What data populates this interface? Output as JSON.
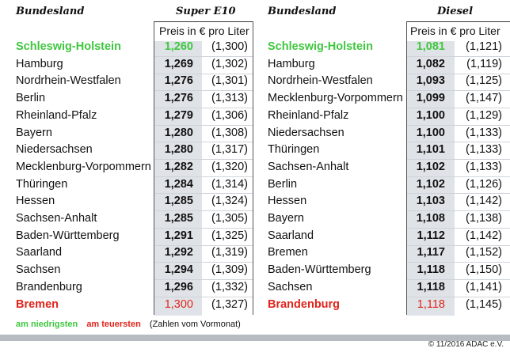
{
  "left": {
    "header_land": "Bundesland",
    "header_fuel": "Super E10",
    "subheader": "Preis in € pro Liter",
    "rows": [
      {
        "name": "Schleswig-Holstein",
        "price": "1,260",
        "prev": "(1,300)",
        "status": "low"
      },
      {
        "name": "Hamburg",
        "price": "1,269",
        "prev": "(1,302)",
        "status": ""
      },
      {
        "name": "Nordrhein-Westfalen",
        "price": "1,276",
        "prev": "(1,301)",
        "status": ""
      },
      {
        "name": "Berlin",
        "price": "1,276",
        "prev": "(1,313)",
        "status": ""
      },
      {
        "name": "Rheinland-Pfalz",
        "price": "1,279",
        "prev": "(1,306)",
        "status": ""
      },
      {
        "name": "Bayern",
        "price": "1,280",
        "prev": "(1,308)",
        "status": ""
      },
      {
        "name": "Niedersachsen",
        "price": "1,280",
        "prev": "(1,317)",
        "status": ""
      },
      {
        "name": "Mecklenburg-Vorpommern",
        "price": "1,282",
        "prev": "(1,320)",
        "status": ""
      },
      {
        "name": "Thüringen",
        "price": "1,284",
        "prev": "(1,314)",
        "status": ""
      },
      {
        "name": "Hessen",
        "price": "1,285",
        "prev": "(1,324)",
        "status": ""
      },
      {
        "name": "Sachsen-Anhalt",
        "price": "1,285",
        "prev": "(1,305)",
        "status": ""
      },
      {
        "name": "Baden-Württemberg",
        "price": "1,291",
        "prev": "(1,325)",
        "status": ""
      },
      {
        "name": "Saarland",
        "price": "1,292",
        "prev": "(1,319)",
        "status": ""
      },
      {
        "name": "Sachsen",
        "price": "1,294",
        "prev": "(1,309)",
        "status": ""
      },
      {
        "name": "Brandenburg",
        "price": "1,296",
        "prev": "(1,332)",
        "status": ""
      },
      {
        "name": "Bremen",
        "price": "1,300",
        "prev": "(1,327)",
        "status": "high"
      }
    ]
  },
  "right": {
    "header_land": "Bundesland",
    "header_fuel": "Diesel",
    "subheader": "Preis in € pro Liter",
    "rows": [
      {
        "name": "Schleswig-Holstein",
        "price": "1,081",
        "prev": "(1,121)",
        "status": "low"
      },
      {
        "name": "Hamburg",
        "price": "1,082",
        "prev": "(1,119)",
        "status": ""
      },
      {
        "name": "Nordrhein-Westfalen",
        "price": "1,093",
        "prev": "(1,125)",
        "status": ""
      },
      {
        "name": "Mecklenburg-Vorpommern",
        "price": "1,099",
        "prev": "(1,147)",
        "status": ""
      },
      {
        "name": "Rheinland-Pfalz",
        "price": "1,100",
        "prev": "(1,129)",
        "status": ""
      },
      {
        "name": "Niedersachsen",
        "price": "1,100",
        "prev": "(1,133)",
        "status": ""
      },
      {
        "name": "Thüringen",
        "price": "1,101",
        "prev": "(1,133)",
        "status": ""
      },
      {
        "name": "Sachsen-Anhalt",
        "price": "1,102",
        "prev": "(1,133)",
        "status": ""
      },
      {
        "name": "Berlin",
        "price": "1,102",
        "prev": "(1,126)",
        "status": ""
      },
      {
        "name": "Hessen",
        "price": "1,103",
        "prev": "(1,142)",
        "status": ""
      },
      {
        "name": "Bayern",
        "price": "1,108",
        "prev": "(1,138)",
        "status": ""
      },
      {
        "name": "Saarland",
        "price": "1,112",
        "prev": "(1,142)",
        "status": ""
      },
      {
        "name": "Bremen",
        "price": "1,117",
        "prev": "(1,152)",
        "status": ""
      },
      {
        "name": "Baden-Württemberg",
        "price": "1,118",
        "prev": "(1,150)",
        "status": ""
      },
      {
        "name": "Sachsen",
        "price": "1,118",
        "prev": "(1,141)",
        "status": ""
      },
      {
        "name": "Brandenburg",
        "price": "1,118",
        "prev": "(1,145)",
        "status": "high"
      }
    ]
  },
  "legend": {
    "low_label": "am niedrigsten",
    "high_label": "am teuersten",
    "note": "(Zahlen vom Vormonat)"
  },
  "colors": {
    "low": "#3fc73f",
    "high": "#e0241b",
    "shade": "#dfe3e8"
  },
  "copyright": "© 11/2016 ADAC e.V."
}
